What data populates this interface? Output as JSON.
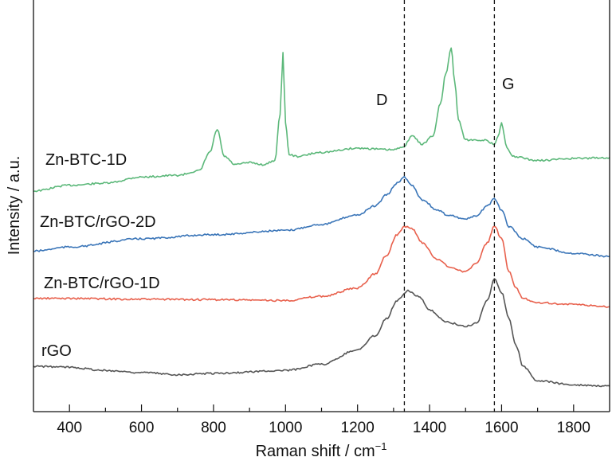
{
  "chart_data": {
    "type": "line",
    "title": "",
    "xlabel": "Raman shift / cm",
    "xlabel_sup": "−1",
    "ylabel": "Intensity / a.u.",
    "xlim": [
      300,
      1900
    ],
    "ylim": [
      0,
      100
    ],
    "xticks": [
      400,
      600,
      800,
      1000,
      1200,
      1400,
      1600,
      1800
    ],
    "xtick_labels": [
      "400",
      "600",
      "800",
      "1000",
      "1200",
      "1400",
      "1600",
      "1800"
    ],
    "grid": false,
    "reference_lines": [
      {
        "label": "D",
        "x": 1330
      },
      {
        "label": "G",
        "x": 1580
      }
    ],
    "series": [
      {
        "name": "Zn-BTC-1D",
        "color": "#5cb87a",
        "x": [
          300,
          400,
          500,
          600,
          700,
          760,
          790,
          810,
          830,
          860,
          900,
          940,
          970,
          985,
          993,
          1000,
          1010,
          1030,
          1100,
          1200,
          1300,
          1330,
          1350,
          1380,
          1410,
          1430,
          1445,
          1460,
          1470,
          1480,
          1500,
          1550,
          1580,
          1590,
          1600,
          1615,
          1630,
          1700,
          1800,
          1900
        ],
        "y": [
          53.6,
          55,
          55.5,
          57,
          57.4,
          58.5,
          63,
          68.5,
          62,
          60,
          60.5,
          60,
          61,
          72,
          87.4,
          70,
          62.5,
          62,
          63,
          64,
          63.6,
          64.5,
          67,
          65,
          67,
          74.9,
          82,
          88.4,
          80,
          71,
          66,
          66,
          65,
          67,
          70,
          64,
          62,
          61,
          61.5,
          61.7
        ]
      },
      {
        "name": "Zn-BTC/rGO-2D",
        "color": "#3a75b8",
        "x": [
          300,
          400,
          600,
          800,
          1000,
          1100,
          1200,
          1250,
          1280,
          1310,
          1330,
          1350,
          1380,
          1420,
          1450,
          1500,
          1530,
          1560,
          1580,
          1600,
          1620,
          1660,
          1700,
          1800,
          1900
        ],
        "y": [
          39,
          40,
          42,
          43,
          44,
          45.5,
          47.8,
          50,
          52.6,
          55.5,
          57,
          55,
          51.5,
          49,
          47.8,
          46.8,
          47.5,
          50,
          51.6,
          49,
          45,
          42,
          40,
          38.5,
          37.7
        ]
      },
      {
        "name": "Zn-BTC/rGO-1D",
        "color": "#e8604c",
        "x": [
          300,
          400,
          600,
          800,
          1000,
          1100,
          1200,
          1250,
          1280,
          1310,
          1330,
          1350,
          1380,
          1420,
          1460,
          1500,
          1530,
          1560,
          1580,
          1600,
          1620,
          1640,
          1660,
          1700,
          1800,
          1900
        ],
        "y": [
          27.5,
          27.5,
          27.3,
          27.2,
          27,
          28,
          30,
          33.5,
          38,
          43,
          45,
          44.5,
          41,
          37,
          35,
          34,
          36,
          41,
          45,
          42,
          34,
          30,
          27.5,
          26.5,
          26,
          25.5
        ]
      },
      {
        "name": "rGO",
        "color": "#555555",
        "x": [
          300,
          400,
          500,
          600,
          700,
          800,
          1000,
          1100,
          1200,
          1250,
          1280,
          1310,
          1340,
          1370,
          1400,
          1450,
          1500,
          1530,
          1560,
          1580,
          1600,
          1620,
          1640,
          1660,
          1700,
          1800,
          1900
        ],
        "y": [
          11,
          10.8,
          10,
          9.5,
          9,
          9.3,
          10,
          11.5,
          15,
          18.5,
          22.6,
          27,
          29.4,
          28,
          24.6,
          21.7,
          20.7,
          21.5,
          27,
          32.3,
          29,
          22.6,
          16,
          11,
          7.5,
          6.5,
          6.2
        ]
      }
    ],
    "legend": "inline labels at left of each curve"
  }
}
